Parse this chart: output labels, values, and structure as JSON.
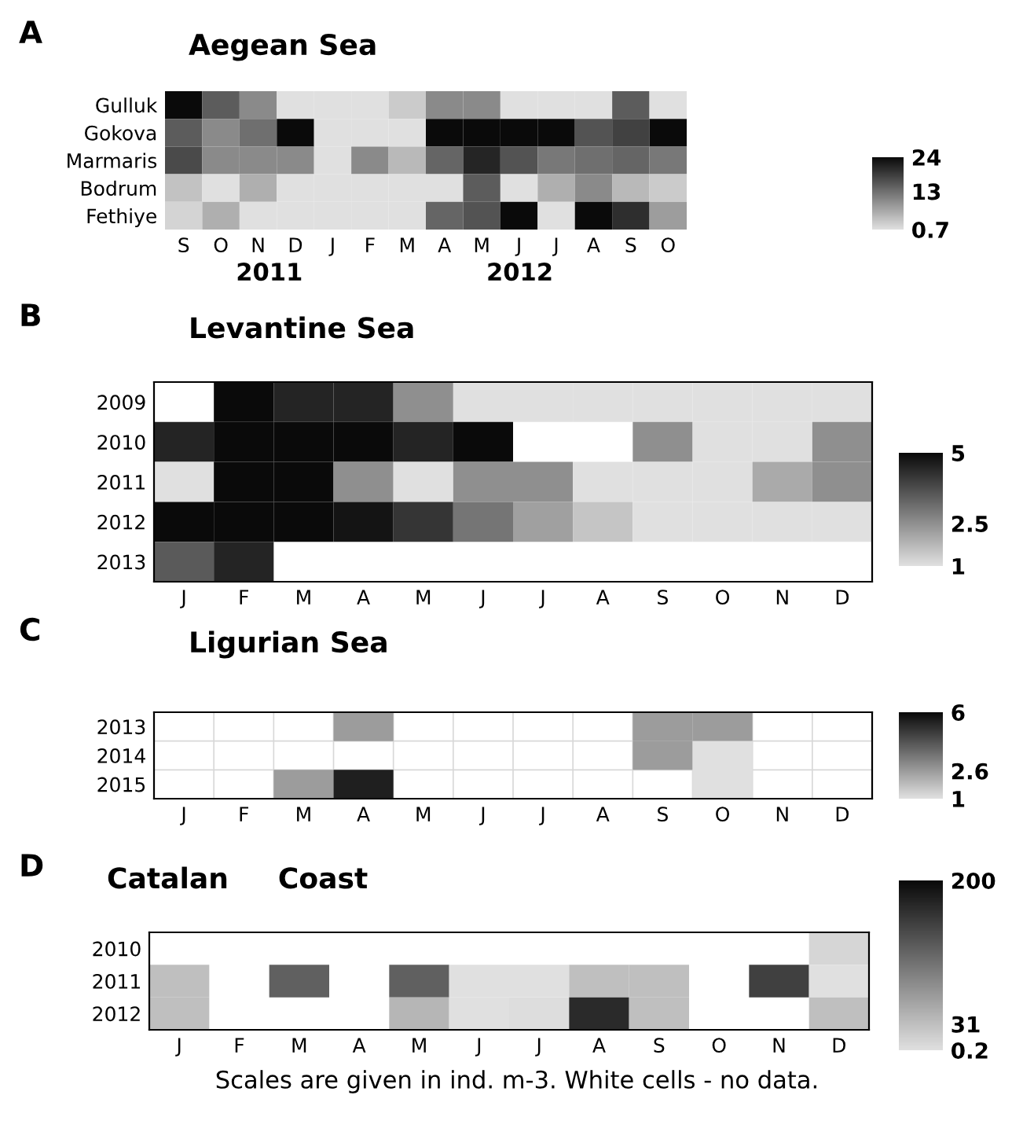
{
  "chart_data": [
    {
      "type": "heatmap",
      "title": "Aegean Sea",
      "annotations": [
        "A",
        "2011",
        "2012"
      ],
      "categories": [
        "S",
        "O",
        "N",
        "D",
        "J",
        "F",
        "M",
        "A",
        "M",
        "J",
        "J",
        "A",
        "S",
        "O"
      ],
      "y_categories": [
        "Gulluk",
        "Gokova",
        "Marmaris",
        "Bodrum",
        "Fethiye"
      ],
      "cells": [
        [
          24,
          15,
          10,
          0.7,
          0.7,
          0.7,
          3,
          10,
          10,
          0.7,
          0.7,
          0.7,
          15,
          0.7
        ],
        [
          15,
          10,
          13,
          24,
          0.7,
          0.7,
          0.7,
          24,
          24,
          24,
          24,
          16,
          18,
          24
        ],
        [
          17,
          10,
          10,
          10,
          0.7,
          10,
          5,
          14,
          21,
          16,
          12,
          13,
          14,
          12
        ],
        [
          4,
          0.7,
          6,
          0.7,
          0.7,
          0.7,
          0.7,
          0.7,
          15,
          0.7,
          6,
          10,
          5,
          3
        ],
        [
          2,
          6,
          0.7,
          0.7,
          0.7,
          0.7,
          0.7,
          14,
          16,
          24,
          0.7,
          24,
          20,
          8
        ]
      ],
      "clim": [
        0.7,
        24
      ],
      "cticks": [
        0.7,
        13,
        24
      ],
      "grid": false
    },
    {
      "type": "heatmap",
      "title": "Levantine Sea",
      "annotations": [
        "B"
      ],
      "categories": [
        "J",
        "F",
        "M",
        "A",
        "M",
        "J",
        "J",
        "A",
        "S",
        "O",
        "N",
        "D"
      ],
      "y_categories": [
        "2009",
        "2010",
        "2011",
        "2012",
        "2013"
      ],
      "cells": [
        [
          null,
          5,
          4.5,
          4.5,
          2.5,
          1,
          1,
          1,
          1,
          1,
          1,
          1
        ],
        [
          4.5,
          5,
          5,
          5,
          4.5,
          5,
          null,
          null,
          2.5,
          1,
          1,
          2.5
        ],
        [
          1,
          5,
          5,
          2.5,
          1,
          2.5,
          2.5,
          1,
          1,
          1,
          2,
          2.5
        ],
        [
          5,
          5,
          5,
          4.8,
          4.2,
          3,
          2.2,
          1.5,
          1,
          1,
          1,
          1
        ],
        [
          3.5,
          4.5,
          null,
          null,
          null,
          null,
          null,
          null,
          null,
          null,
          null,
          null
        ]
      ],
      "clim": [
        1,
        5
      ],
      "cticks": [
        1,
        2.5,
        5
      ],
      "grid": false
    },
    {
      "type": "heatmap",
      "title": "Ligurian Sea",
      "annotations": [
        "C"
      ],
      "categories": [
        "J",
        "F",
        "M",
        "A",
        "M",
        "J",
        "J",
        "A",
        "S",
        "O",
        "N",
        "D"
      ],
      "y_categories": [
        "2013",
        "2014",
        "2015"
      ],
      "cells": [
        [
          null,
          null,
          null,
          2.6,
          null,
          null,
          null,
          null,
          2.6,
          2.6,
          null,
          null
        ],
        [
          null,
          null,
          null,
          null,
          null,
          null,
          null,
          null,
          2.6,
          1,
          null,
          null
        ],
        [
          null,
          null,
          2.6,
          5.5,
          null,
          null,
          null,
          null,
          null,
          1,
          null,
          null
        ]
      ],
      "clim": [
        1,
        6
      ],
      "cticks": [
        1,
        2.6,
        6
      ],
      "grid": true
    },
    {
      "type": "heatmap",
      "title": "Catalan     Coast",
      "annotations": [
        "D",
        "Scales are given in ind. m-3. White cells - no data."
      ],
      "categories": [
        "J",
        "F",
        "M",
        "A",
        "M",
        "J",
        "J",
        "A",
        "S",
        "O",
        "N",
        "D"
      ],
      "y_categories": [
        "2010",
        "2011",
        "2012"
      ],
      "cells": [
        [
          null,
          null,
          null,
          null,
          null,
          null,
          null,
          null,
          null,
          null,
          null,
          10
        ],
        [
          31,
          null,
          120,
          null,
          120,
          0.2,
          0.2,
          31,
          31,
          null,
          150,
          0.5
        ],
        [
          31,
          null,
          null,
          null,
          40,
          0.2,
          3,
          170,
          31,
          null,
          null,
          31
        ]
      ],
      "clim": [
        0.2,
        200
      ],
      "cticks": [
        0.2,
        31,
        200
      ],
      "grid": false
    }
  ]
}
